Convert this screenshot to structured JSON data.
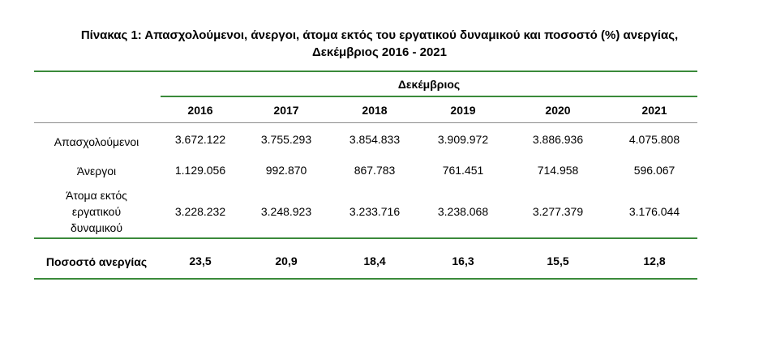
{
  "title": {
    "line1": "Πίνακας 1: Απασχολούμενοι, άνεργοι, άτομα εκτός του εργατικού δυναμικού και ποσοστό (%) ανεργίας,",
    "line2": "Δεκέμβριος 2016 - 2021"
  },
  "table": {
    "group_header": "Δεκέμβριος",
    "years": [
      "2016",
      "2017",
      "2018",
      "2019",
      "2020",
      "2021"
    ],
    "rows": [
      {
        "label": "Απασχολούμενοι",
        "values": [
          "3.672.122",
          "3.755.293",
          "3.854.833",
          "3.909.972",
          "3.886.936",
          "4.075.808"
        ]
      },
      {
        "label": "Άνεργοι",
        "values": [
          "1.129.056",
          "992.870",
          "867.783",
          "761.451",
          "714.958",
          "596.067"
        ]
      },
      {
        "label_lines": [
          "Άτομα εκτός",
          "εργατικού",
          "δυναμικού"
        ],
        "values": [
          "3.228.232",
          "3.248.923",
          "3.233.716",
          "3.238.068",
          "3.277.379",
          "3.176.044"
        ]
      }
    ],
    "footer": {
      "label": "Ποσοστό ανεργίας",
      "values": [
        "23,5",
        "20,9",
        "18,4",
        "16,3",
        "15,5",
        "12,8"
      ]
    }
  }
}
